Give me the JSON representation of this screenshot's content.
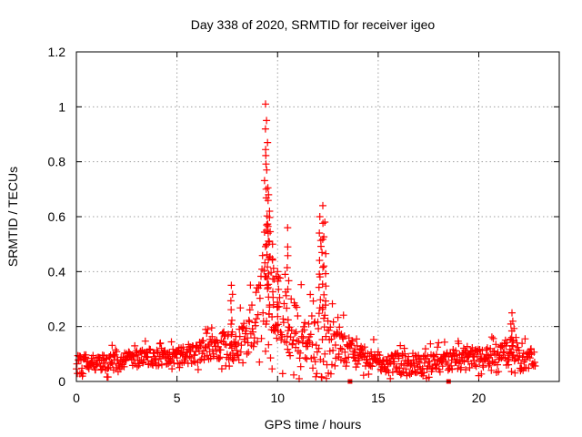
{
  "chart_data": {
    "type": "scatter",
    "title": "Day 338 of 2020, SRMTID for receiver igeo",
    "xlabel": "GPS time / hours",
    "ylabel": "SRMTID / TECUs",
    "xlim": [
      0,
      24
    ],
    "ylim": [
      0,
      1.2
    ],
    "x_ticks": [
      0,
      5,
      10,
      15,
      20
    ],
    "x_tick_labels": [
      "0",
      "5",
      "10",
      "15",
      "20"
    ],
    "y_ticks": [
      0,
      0.2,
      0.4,
      0.6,
      0.8,
      1.0,
      1.2
    ],
    "y_tick_labels": [
      "0",
      "0.2",
      "0.4",
      "0.6",
      "0.8",
      "1",
      "1.2"
    ],
    "grid": true,
    "series": [
      {
        "name": "SRMTID",
        "color": "#ff0000",
        "marker": "plus",
        "points_per_hour": 40,
        "x_range": [
          0,
          22.8
        ],
        "baseline": [
          [
            0,
            0.07
          ],
          [
            1,
            0.065
          ],
          [
            2,
            0.07
          ],
          [
            3,
            0.08
          ],
          [
            4,
            0.085
          ],
          [
            5,
            0.09
          ],
          [
            6,
            0.1
          ],
          [
            7,
            0.12
          ],
          [
            8,
            0.13
          ],
          [
            8.8,
            0.2
          ],
          [
            9.3,
            0.3
          ],
          [
            9.8,
            0.28
          ],
          [
            10.3,
            0.22
          ],
          [
            10.8,
            0.15
          ],
          [
            11.5,
            0.14
          ],
          [
            12.5,
            0.14
          ],
          [
            13.2,
            0.13
          ],
          [
            13.7,
            0.1
          ],
          [
            14.5,
            0.08
          ],
          [
            15.5,
            0.065
          ],
          [
            16.5,
            0.06
          ],
          [
            17.5,
            0.06
          ],
          [
            18.5,
            0.07
          ],
          [
            19.5,
            0.075
          ],
          [
            20.5,
            0.085
          ],
          [
            21.5,
            0.09
          ],
          [
            22.8,
            0.08
          ]
        ],
        "spread": [
          [
            0,
            0.06
          ],
          [
            6,
            0.08
          ],
          [
            7.5,
            0.12
          ],
          [
            8.8,
            0.2
          ],
          [
            9.5,
            0.6
          ],
          [
            10.2,
            0.25
          ],
          [
            10.8,
            0.3
          ],
          [
            11.5,
            0.15
          ],
          [
            12.2,
            0.45
          ],
          [
            13,
            0.15
          ],
          [
            14,
            0.08
          ],
          [
            21,
            0.08
          ],
          [
            21.7,
            0.15
          ],
          [
            22.8,
            0.06
          ]
        ],
        "peaks": [
          {
            "x": 9.4,
            "y": 1.01
          },
          {
            "x": 9.45,
            "y": 0.95
          },
          {
            "x": 9.5,
            "y": 0.87
          },
          {
            "x": 9.55,
            "y": 0.68
          },
          {
            "x": 9.6,
            "y": 0.62
          },
          {
            "x": 9.75,
            "y": 0.5
          },
          {
            "x": 10.0,
            "y": 0.4
          },
          {
            "x": 10.5,
            "y": 0.56
          },
          {
            "x": 12.1,
            "y": 0.6
          },
          {
            "x": 12.25,
            "y": 0.64
          },
          {
            "x": 12.35,
            "y": 0.58
          },
          {
            "x": 7.7,
            "y": 0.35
          },
          {
            "x": 21.65,
            "y": 0.25
          }
        ],
        "zero_markers": [
          13.6,
          18.5
        ]
      }
    ]
  }
}
